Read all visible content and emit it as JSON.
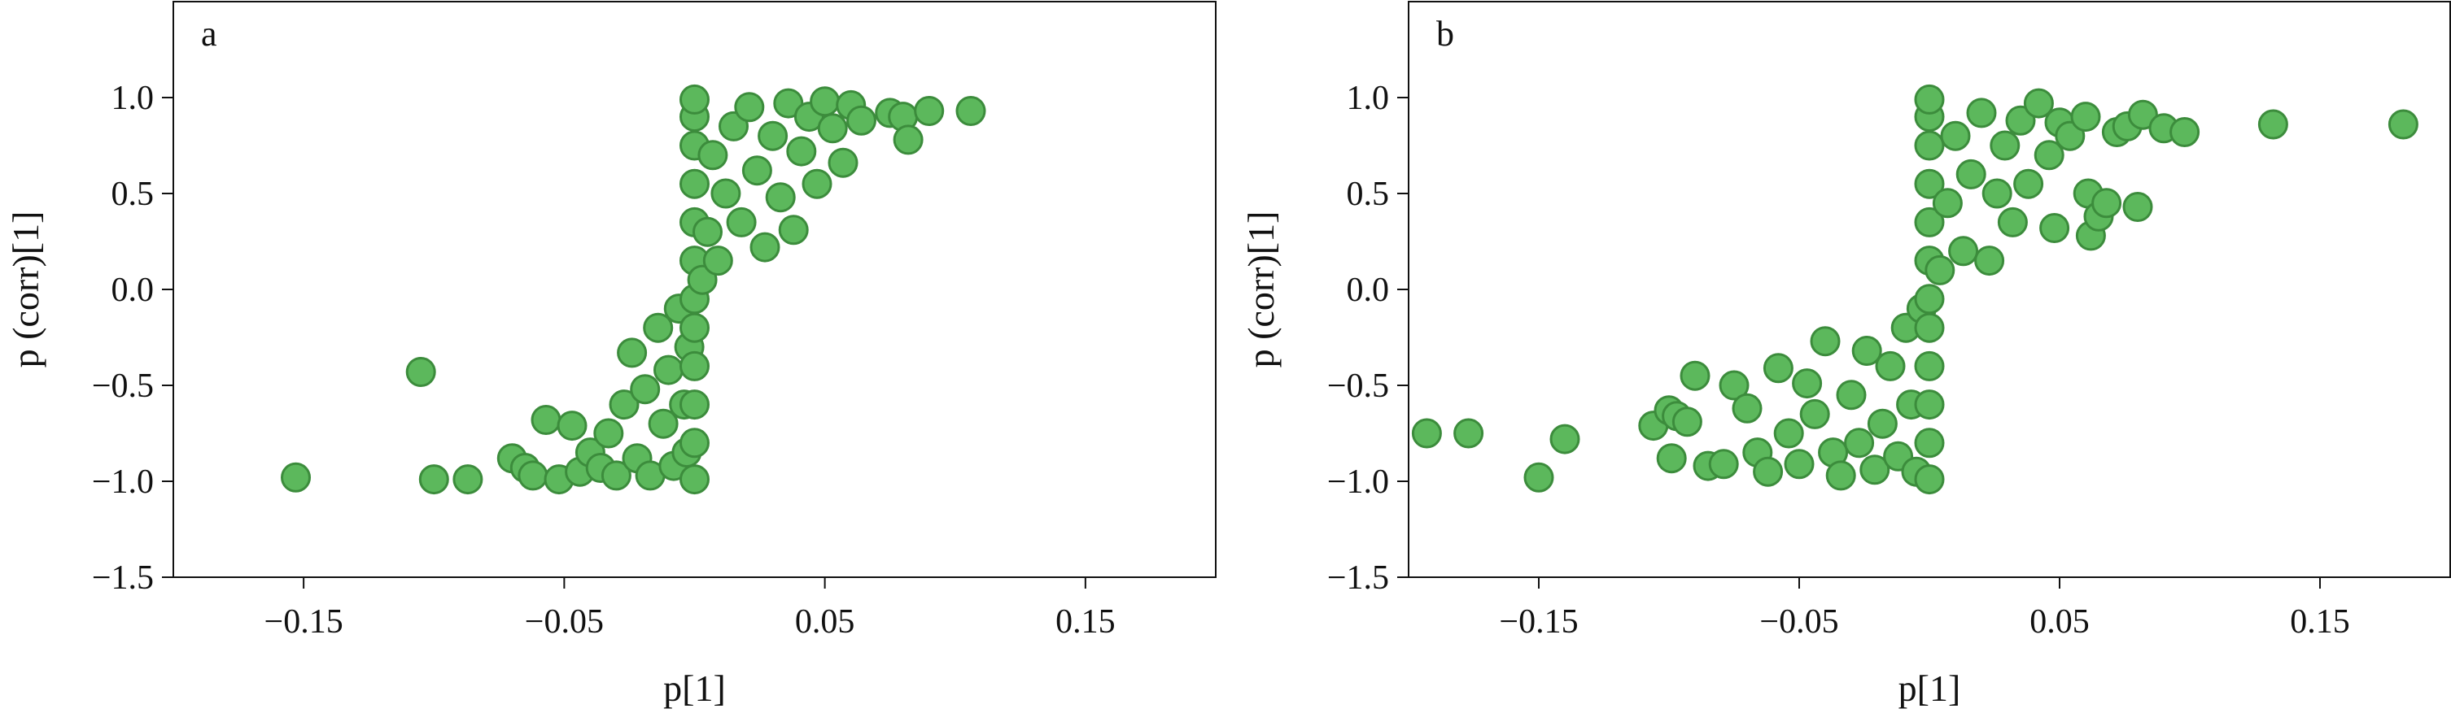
{
  "chart_data": [
    {
      "type": "scatter",
      "panel_label": "a",
      "xlabel": "p[1]",
      "ylabel": "p (corr)[1]",
      "xlim": [
        -0.2,
        0.2
      ],
      "ylim": [
        -1.5,
        1.5
      ],
      "x_ticks": [
        -0.15,
        -0.05,
        0.05,
        0.15
      ],
      "x_tick_labels": [
        "−0.15",
        "−0.05",
        "0.05",
        "0.15"
      ],
      "y_ticks": [
        -1.5,
        -1.0,
        -0.5,
        0.0,
        0.5,
        1.0
      ],
      "y_tick_labels": [
        "−1.5",
        "−1.0",
        "−0.5",
        "0.0",
        "0.5",
        "1.0"
      ],
      "marker_color": "#5cb85c",
      "marker_edge": "#3c8c3c",
      "grid": false,
      "points": [
        [
          -0.153,
          -0.98
        ],
        [
          -0.105,
          -0.43
        ],
        [
          -0.1,
          -0.99
        ],
        [
          -0.087,
          -0.99
        ],
        [
          -0.07,
          -0.88
        ],
        [
          -0.065,
          -0.93
        ],
        [
          -0.062,
          -0.97
        ],
        [
          -0.057,
          -0.68
        ],
        [
          -0.052,
          -0.99
        ],
        [
          -0.047,
          -0.71
        ],
        [
          -0.044,
          -0.95
        ],
        [
          -0.04,
          -0.85
        ],
        [
          -0.036,
          -0.93
        ],
        [
          -0.033,
          -0.75
        ],
        [
          -0.03,
          -0.97
        ],
        [
          -0.027,
          -0.6
        ],
        [
          -0.024,
          -0.33
        ],
        [
          -0.022,
          -0.88
        ],
        [
          -0.019,
          -0.52
        ],
        [
          -0.017,
          -0.97
        ],
        [
          -0.014,
          -0.2
        ],
        [
          -0.012,
          -0.7
        ],
        [
          -0.01,
          -0.42
        ],
        [
          -0.008,
          -0.92
        ],
        [
          -0.006,
          -0.1
        ],
        [
          -0.004,
          -0.6
        ],
        [
          -0.003,
          -0.85
        ],
        [
          -0.002,
          -0.3
        ],
        [
          0.0,
          -0.99
        ],
        [
          0.0,
          -0.8
        ],
        [
          0.0,
          -0.6
        ],
        [
          0.0,
          -0.4
        ],
        [
          0.0,
          -0.2
        ],
        [
          0.0,
          -0.05
        ],
        [
          0.0,
          0.15
        ],
        [
          0.0,
          0.35
        ],
        [
          0.0,
          0.55
        ],
        [
          0.0,
          0.75
        ],
        [
          0.0,
          0.9
        ],
        [
          0.0,
          0.99
        ],
        [
          0.003,
          0.05
        ],
        [
          0.005,
          0.3
        ],
        [
          0.007,
          0.7
        ],
        [
          0.009,
          0.15
        ],
        [
          0.012,
          0.5
        ],
        [
          0.015,
          0.85
        ],
        [
          0.018,
          0.35
        ],
        [
          0.021,
          0.95
        ],
        [
          0.024,
          0.62
        ],
        [
          0.027,
          0.22
        ],
        [
          0.03,
          0.8
        ],
        [
          0.033,
          0.48
        ],
        [
          0.036,
          0.97
        ],
        [
          0.038,
          0.31
        ],
        [
          0.041,
          0.72
        ],
        [
          0.044,
          0.9
        ],
        [
          0.047,
          0.55
        ],
        [
          0.05,
          0.98
        ],
        [
          0.053,
          0.84
        ],
        [
          0.057,
          0.66
        ],
        [
          0.06,
          0.96
        ],
        [
          0.064,
          0.88
        ],
        [
          0.075,
          0.92
        ],
        [
          0.08,
          0.9
        ],
        [
          0.082,
          0.78
        ],
        [
          0.09,
          0.93
        ],
        [
          0.106,
          0.93
        ]
      ]
    },
    {
      "type": "scatter",
      "panel_label": "b",
      "xlabel": "p[1]",
      "ylabel": "p (corr)[1]",
      "xlim": [
        -0.2,
        0.2
      ],
      "ylim": [
        -1.5,
        1.5
      ],
      "x_ticks": [
        -0.15,
        -0.05,
        0.05,
        0.15
      ],
      "x_tick_labels": [
        "−0.15",
        "−0.05",
        "0.05",
        "0.15"
      ],
      "y_ticks": [
        -1.5,
        -1.0,
        -0.5,
        0.0,
        0.5,
        1.0
      ],
      "y_tick_labels": [
        "−1.5",
        "−1.0",
        "−0.5",
        "0.0",
        "0.5",
        "1.0"
      ],
      "marker_color": "#5cb85c",
      "marker_edge": "#3c8c3c",
      "grid": false,
      "points": [
        [
          -0.193,
          -0.75
        ],
        [
          -0.177,
          -0.75
        ],
        [
          -0.15,
          -0.98
        ],
        [
          -0.14,
          -0.78
        ],
        [
          -0.106,
          -0.71
        ],
        [
          -0.1,
          -0.63
        ],
        [
          -0.097,
          -0.66
        ],
        [
          -0.099,
          -0.88
        ],
        [
          -0.093,
          -0.69
        ],
        [
          -0.09,
          -0.45
        ],
        [
          -0.085,
          -0.92
        ],
        [
          -0.079,
          -0.91
        ],
        [
          -0.075,
          -0.5
        ],
        [
          -0.07,
          -0.62
        ],
        [
          -0.066,
          -0.85
        ],
        [
          -0.062,
          -0.95
        ],
        [
          -0.058,
          -0.41
        ],
        [
          -0.054,
          -0.75
        ],
        [
          -0.05,
          -0.91
        ],
        [
          -0.047,
          -0.49
        ],
        [
          -0.044,
          -0.65
        ],
        [
          -0.04,
          -0.27
        ],
        [
          -0.037,
          -0.85
        ],
        [
          -0.034,
          -0.97
        ],
        [
          -0.03,
          -0.55
        ],
        [
          -0.027,
          -0.8
        ],
        [
          -0.024,
          -0.32
        ],
        [
          -0.021,
          -0.94
        ],
        [
          -0.018,
          -0.7
        ],
        [
          -0.015,
          -0.4
        ],
        [
          -0.012,
          -0.87
        ],
        [
          -0.009,
          -0.2
        ],
        [
          -0.007,
          -0.6
        ],
        [
          -0.005,
          -0.95
        ],
        [
          -0.003,
          -0.1
        ],
        [
          0.0,
          -0.99
        ],
        [
          0.0,
          -0.8
        ],
        [
          0.0,
          -0.6
        ],
        [
          0.0,
          -0.4
        ],
        [
          0.0,
          -0.2
        ],
        [
          0.0,
          -0.05
        ],
        [
          0.0,
          0.15
        ],
        [
          0.0,
          0.35
        ],
        [
          0.0,
          0.55
        ],
        [
          0.0,
          0.75
        ],
        [
          0.0,
          0.9
        ],
        [
          0.0,
          0.99
        ],
        [
          0.004,
          0.1
        ],
        [
          0.007,
          0.45
        ],
        [
          0.01,
          0.8
        ],
        [
          0.013,
          0.2
        ],
        [
          0.016,
          0.6
        ],
        [
          0.02,
          0.92
        ],
        [
          0.023,
          0.15
        ],
        [
          0.026,
          0.5
        ],
        [
          0.029,
          0.75
        ],
        [
          0.032,
          0.35
        ],
        [
          0.035,
          0.88
        ],
        [
          0.038,
          0.55
        ],
        [
          0.042,
          0.97
        ],
        [
          0.046,
          0.7
        ],
        [
          0.05,
          0.87
        ],
        [
          0.054,
          0.8
        ],
        [
          0.048,
          0.32
        ],
        [
          0.06,
          0.9
        ],
        [
          0.061,
          0.5
        ],
        [
          0.062,
          0.28
        ],
        [
          0.065,
          0.38
        ],
        [
          0.068,
          0.45
        ],
        [
          0.072,
          0.82
        ],
        [
          0.076,
          0.85
        ],
        [
          0.08,
          0.43
        ],
        [
          0.082,
          0.91
        ],
        [
          0.09,
          0.84
        ],
        [
          0.098,
          0.82
        ],
        [
          0.132,
          0.86
        ],
        [
          0.182,
          0.86
        ]
      ]
    }
  ]
}
